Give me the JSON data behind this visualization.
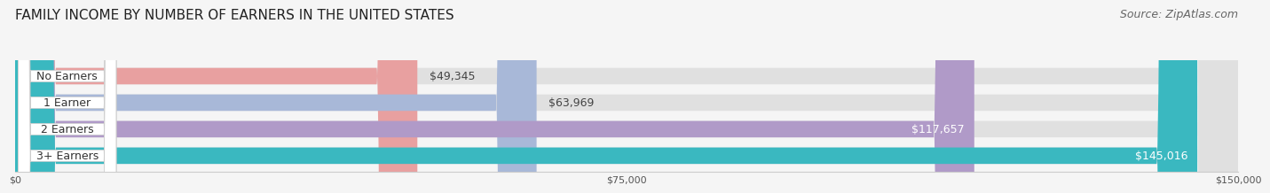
{
  "title": "FAMILY INCOME BY NUMBER OF EARNERS IN THE UNITED STATES",
  "source": "Source: ZipAtlas.com",
  "categories": [
    "No Earners",
    "1 Earner",
    "2 Earners",
    "3+ Earners"
  ],
  "values": [
    49345,
    63969,
    117657,
    145016
  ],
  "value_labels": [
    "$49,345",
    "$63,969",
    "$117,657",
    "$145,016"
  ],
  "bar_colors": [
    "#e8a0a0",
    "#a8b8d8",
    "#b09ac8",
    "#3ab8c0"
  ],
  "fig_bg_color": "#f5f5f5",
  "x_max": 150000,
  "x_ticks": [
    0,
    75000,
    150000
  ],
  "x_tick_labels": [
    "$0",
    "$75,000",
    "$150,000"
  ],
  "title_fontsize": 11,
  "source_fontsize": 9,
  "label_fontsize": 9,
  "value_fontsize": 9
}
